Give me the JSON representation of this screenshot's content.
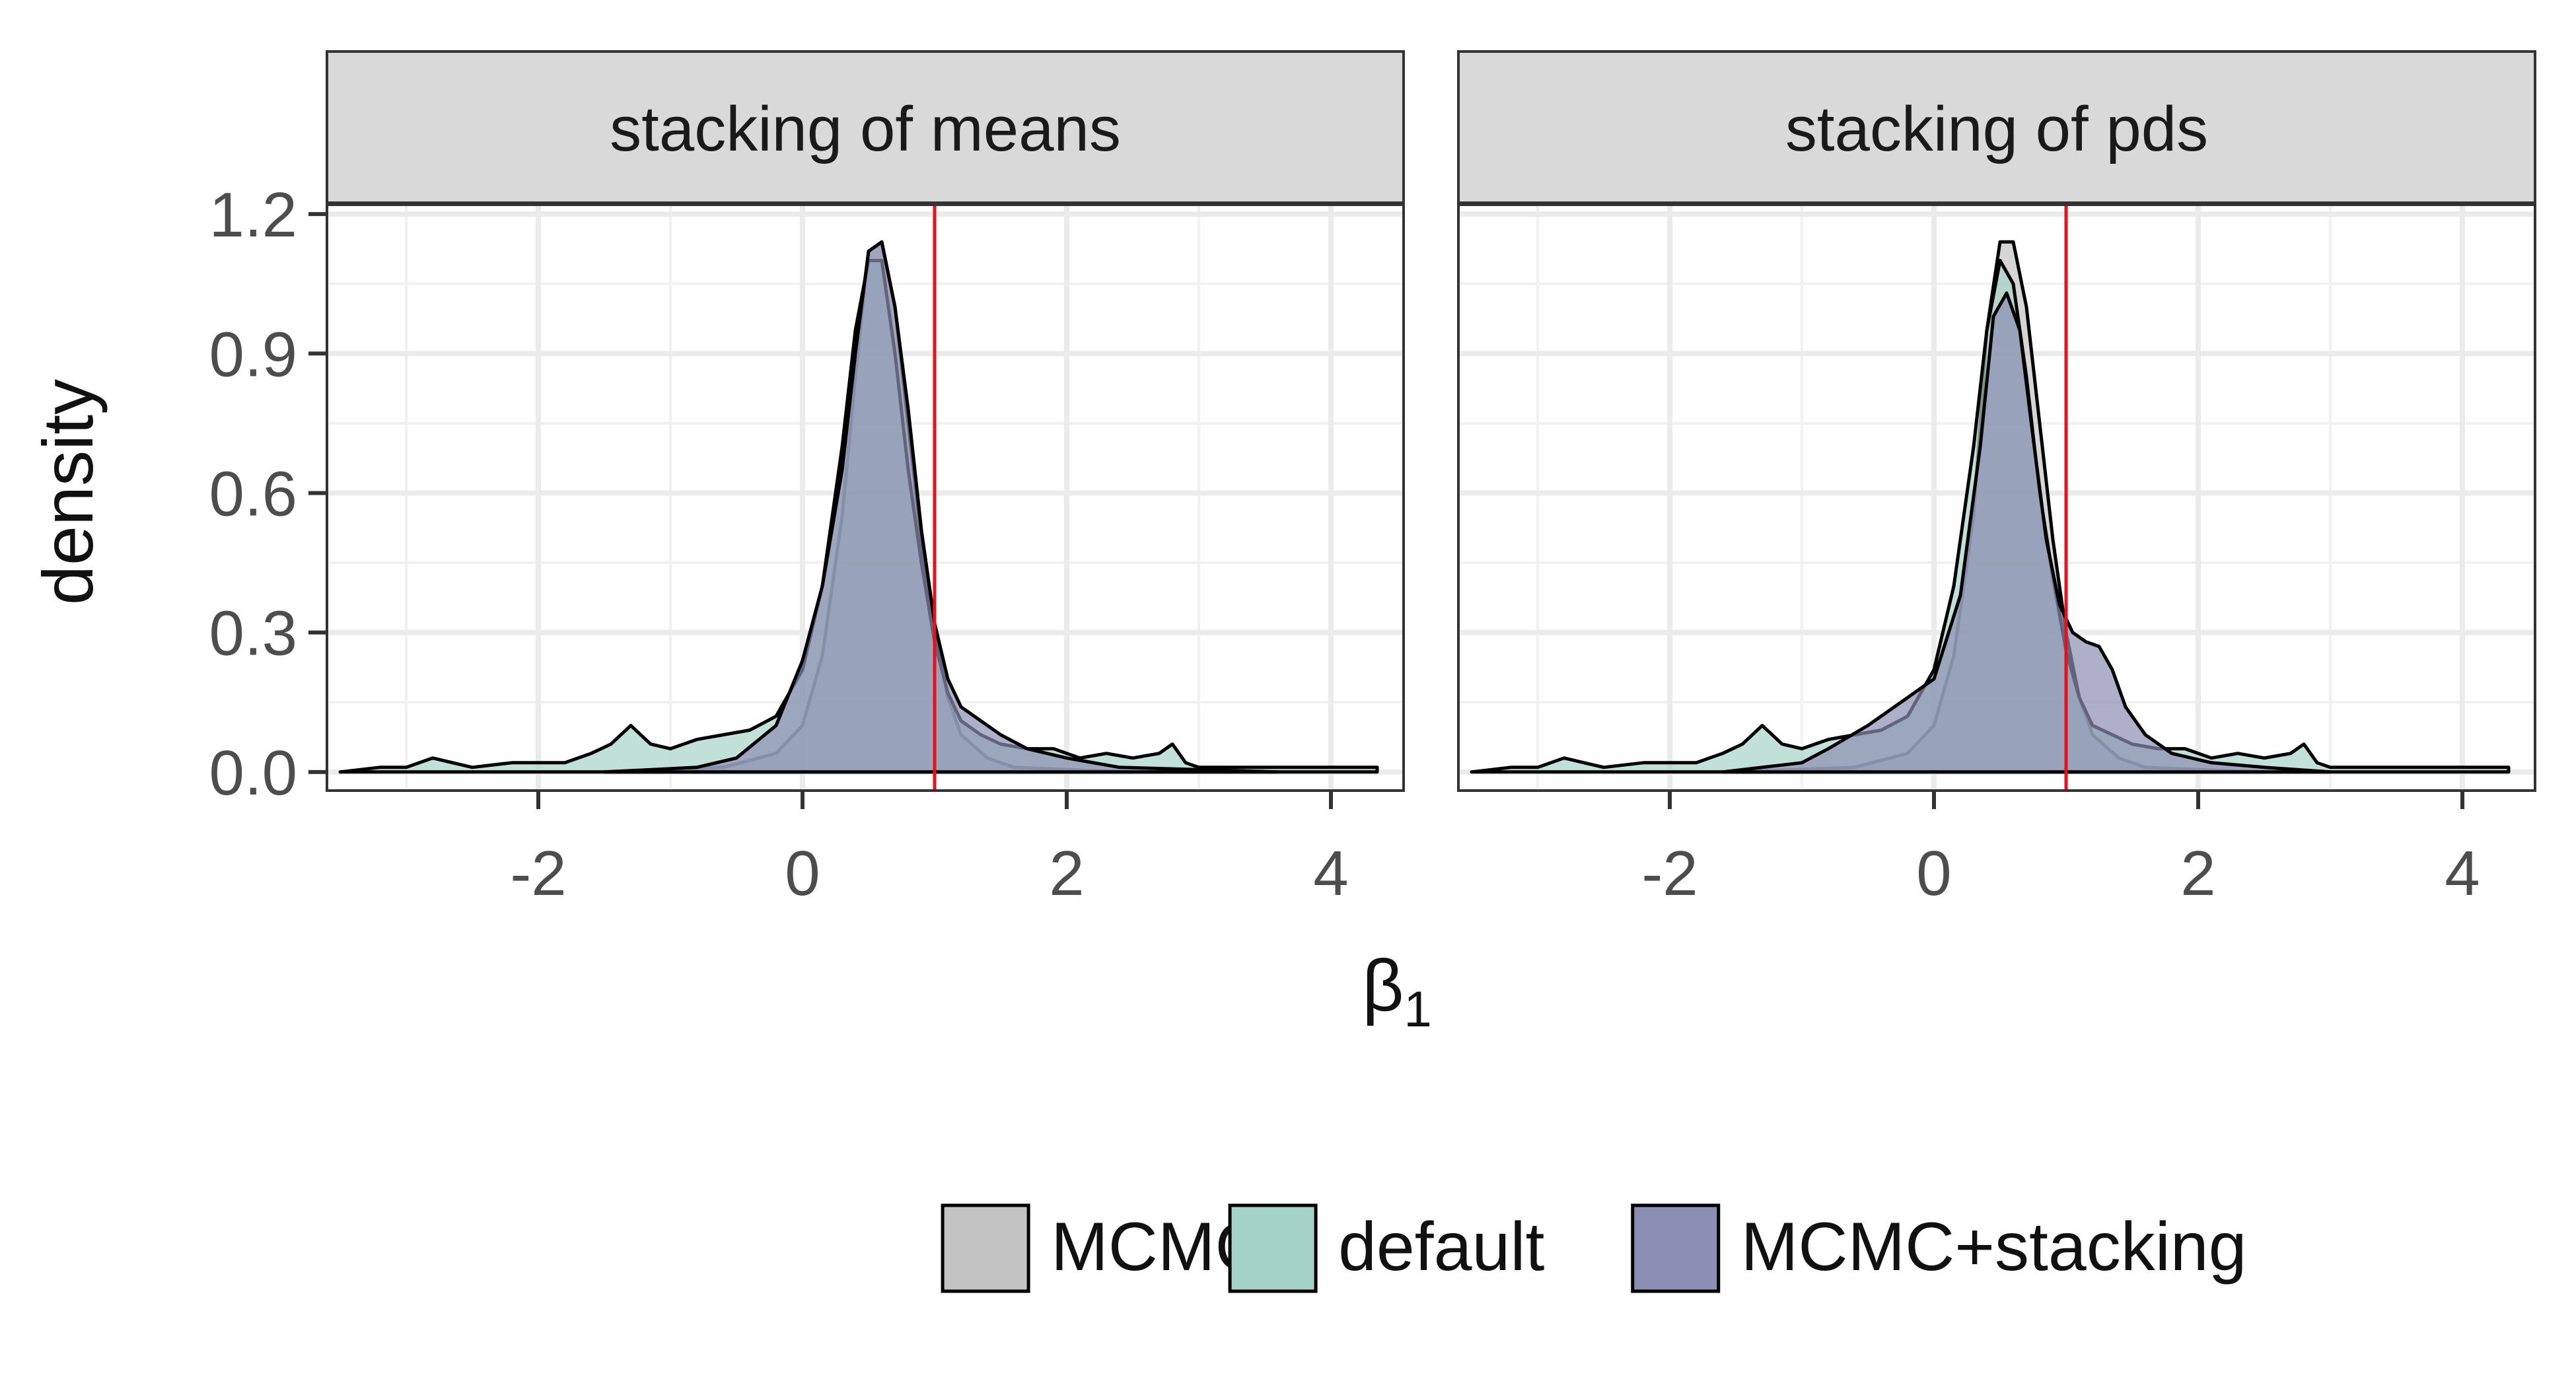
{
  "chart_data": {
    "type": "area",
    "ylabel": "density",
    "xlabel": "β",
    "xlabel_subscript": "1",
    "xlim": [
      -3.6,
      4.55
    ],
    "ylim": [
      -0.04,
      1.22
    ],
    "x_ticks": [
      -2,
      0,
      2,
      4
    ],
    "x_tick_labels": [
      "-2",
      "0",
      "2",
      "4"
    ],
    "y_ticks": [
      0.0,
      0.3,
      0.6,
      0.9,
      1.2
    ],
    "y_tick_labels": [
      "0.0",
      "0.3",
      "0.6",
      "0.9",
      "1.2"
    ],
    "reference_line": {
      "x": 1.0,
      "color": "#e8101b"
    },
    "legend": {
      "position": "bottom",
      "items": [
        {
          "label": "MCMC",
          "color": "#c3c3c3"
        },
        {
          "label": "default",
          "color": "#a6d3c8"
        },
        {
          "label": "MCMC+stacking",
          "color": "#8c8db2"
        }
      ]
    },
    "panels": [
      {
        "title": "stacking of means",
        "series": [
          {
            "name": "MCMC",
            "color": "#c3c3c3",
            "x": [
              -1.5,
              -0.6,
              -0.2,
              0.0,
              0.15,
              0.3,
              0.4,
              0.5,
              0.6,
              0.7,
              0.8,
              0.9,
              1.0,
              1.1,
              1.2,
              1.4,
              1.6,
              2.0,
              2.5
            ],
            "y": [
              0.0,
              0.01,
              0.04,
              0.1,
              0.25,
              0.55,
              0.85,
              1.12,
              1.14,
              1.0,
              0.75,
              0.5,
              0.3,
              0.16,
              0.08,
              0.03,
              0.01,
              0.005,
              0.0
            ]
          },
          {
            "name": "default",
            "color": "#a6d3c8",
            "x": [
              -3.5,
              -3.2,
              -3.0,
              -2.8,
              -2.5,
              -2.2,
              -2.0,
              -1.8,
              -1.6,
              -1.45,
              -1.3,
              -1.15,
              -1.0,
              -0.8,
              -0.6,
              -0.4,
              -0.2,
              0.0,
              0.15,
              0.3,
              0.4,
              0.5,
              0.6,
              0.7,
              0.8,
              0.9,
              1.0,
              1.1,
              1.2,
              1.35,
              1.5,
              1.7,
              1.9,
              2.1,
              2.3,
              2.5,
              2.7,
              2.8,
              2.9,
              3.0,
              3.2,
              3.4,
              3.6,
              3.8,
              4.0,
              4.2,
              4.35
            ],
            "y": [
              0.0,
              0.01,
              0.01,
              0.03,
              0.01,
              0.02,
              0.02,
              0.02,
              0.04,
              0.06,
              0.1,
              0.06,
              0.05,
              0.07,
              0.08,
              0.09,
              0.12,
              0.22,
              0.4,
              0.7,
              0.95,
              1.1,
              1.1,
              0.9,
              0.65,
              0.45,
              0.28,
              0.17,
              0.11,
              0.08,
              0.06,
              0.05,
              0.05,
              0.03,
              0.04,
              0.03,
              0.04,
              0.06,
              0.02,
              0.01,
              0.01,
              0.01,
              0.01,
              0.01,
              0.01,
              0.01,
              0.01
            ]
          },
          {
            "name": "MCMC+stacking",
            "color": "#8c8db2",
            "x": [
              -1.5,
              -0.8,
              -0.5,
              -0.2,
              0.0,
              0.15,
              0.3,
              0.4,
              0.5,
              0.6,
              0.7,
              0.8,
              0.9,
              1.0,
              1.1,
              1.2,
              1.35,
              1.5,
              1.7,
              2.0,
              2.4,
              3.0,
              3.6
            ],
            "y": [
              0.0,
              0.01,
              0.03,
              0.1,
              0.24,
              0.4,
              0.65,
              0.9,
              1.12,
              1.14,
              1.0,
              0.78,
              0.52,
              0.32,
              0.2,
              0.14,
              0.11,
              0.08,
              0.05,
              0.03,
              0.01,
              0.005,
              0.0
            ]
          }
        ]
      },
      {
        "title": "stacking of pds",
        "series": [
          {
            "name": "MCMC",
            "color": "#c3c3c3",
            "x": [
              -1.5,
              -0.6,
              -0.2,
              0.0,
              0.15,
              0.3,
              0.4,
              0.5,
              0.6,
              0.7,
              0.8,
              0.9,
              1.0,
              1.1,
              1.2,
              1.4,
              1.6,
              2.0,
              2.5
            ],
            "y": [
              0.0,
              0.01,
              0.04,
              0.1,
              0.25,
              0.55,
              0.95,
              1.14,
              1.14,
              1.0,
              0.75,
              0.5,
              0.3,
              0.16,
              0.08,
              0.03,
              0.01,
              0.005,
              0.0
            ]
          },
          {
            "name": "default",
            "color": "#a6d3c8",
            "x": [
              -3.5,
              -3.2,
              -3.0,
              -2.8,
              -2.5,
              -2.2,
              -2.0,
              -1.8,
              -1.6,
              -1.45,
              -1.3,
              -1.15,
              -1.0,
              -0.8,
              -0.6,
              -0.4,
              -0.2,
              0.0,
              0.15,
              0.3,
              0.4,
              0.5,
              0.6,
              0.7,
              0.8,
              0.9,
              1.0,
              1.1,
              1.2,
              1.35,
              1.5,
              1.7,
              1.9,
              2.1,
              2.3,
              2.5,
              2.7,
              2.8,
              2.9,
              3.0,
              3.2,
              3.4,
              3.6,
              3.8,
              4.0,
              4.2,
              4.35
            ],
            "y": [
              0.0,
              0.01,
              0.01,
              0.03,
              0.01,
              0.02,
              0.02,
              0.02,
              0.04,
              0.06,
              0.1,
              0.06,
              0.05,
              0.07,
              0.08,
              0.09,
              0.12,
              0.22,
              0.4,
              0.7,
              0.95,
              1.1,
              1.05,
              0.85,
              0.6,
              0.42,
              0.26,
              0.16,
              0.1,
              0.08,
              0.06,
              0.05,
              0.05,
              0.03,
              0.04,
              0.03,
              0.04,
              0.06,
              0.02,
              0.01,
              0.01,
              0.01,
              0.01,
              0.01,
              0.01,
              0.01,
              0.01
            ]
          },
          {
            "name": "MCMC+stacking",
            "color": "#8c8db2",
            "x": [
              -1.6,
              -1.0,
              -0.8,
              -0.5,
              -0.3,
              0.0,
              0.2,
              0.35,
              0.45,
              0.55,
              0.65,
              0.75,
              0.85,
              0.95,
              1.05,
              1.15,
              1.25,
              1.35,
              1.45,
              1.6,
              1.8,
              2.1,
              2.5,
              3.0
            ],
            "y": [
              0.0,
              0.02,
              0.05,
              0.1,
              0.14,
              0.2,
              0.38,
              0.7,
              0.98,
              1.03,
              0.95,
              0.72,
              0.5,
              0.36,
              0.3,
              0.28,
              0.27,
              0.22,
              0.14,
              0.08,
              0.04,
              0.02,
              0.01,
              0.0
            ]
          }
        ]
      }
    ]
  }
}
